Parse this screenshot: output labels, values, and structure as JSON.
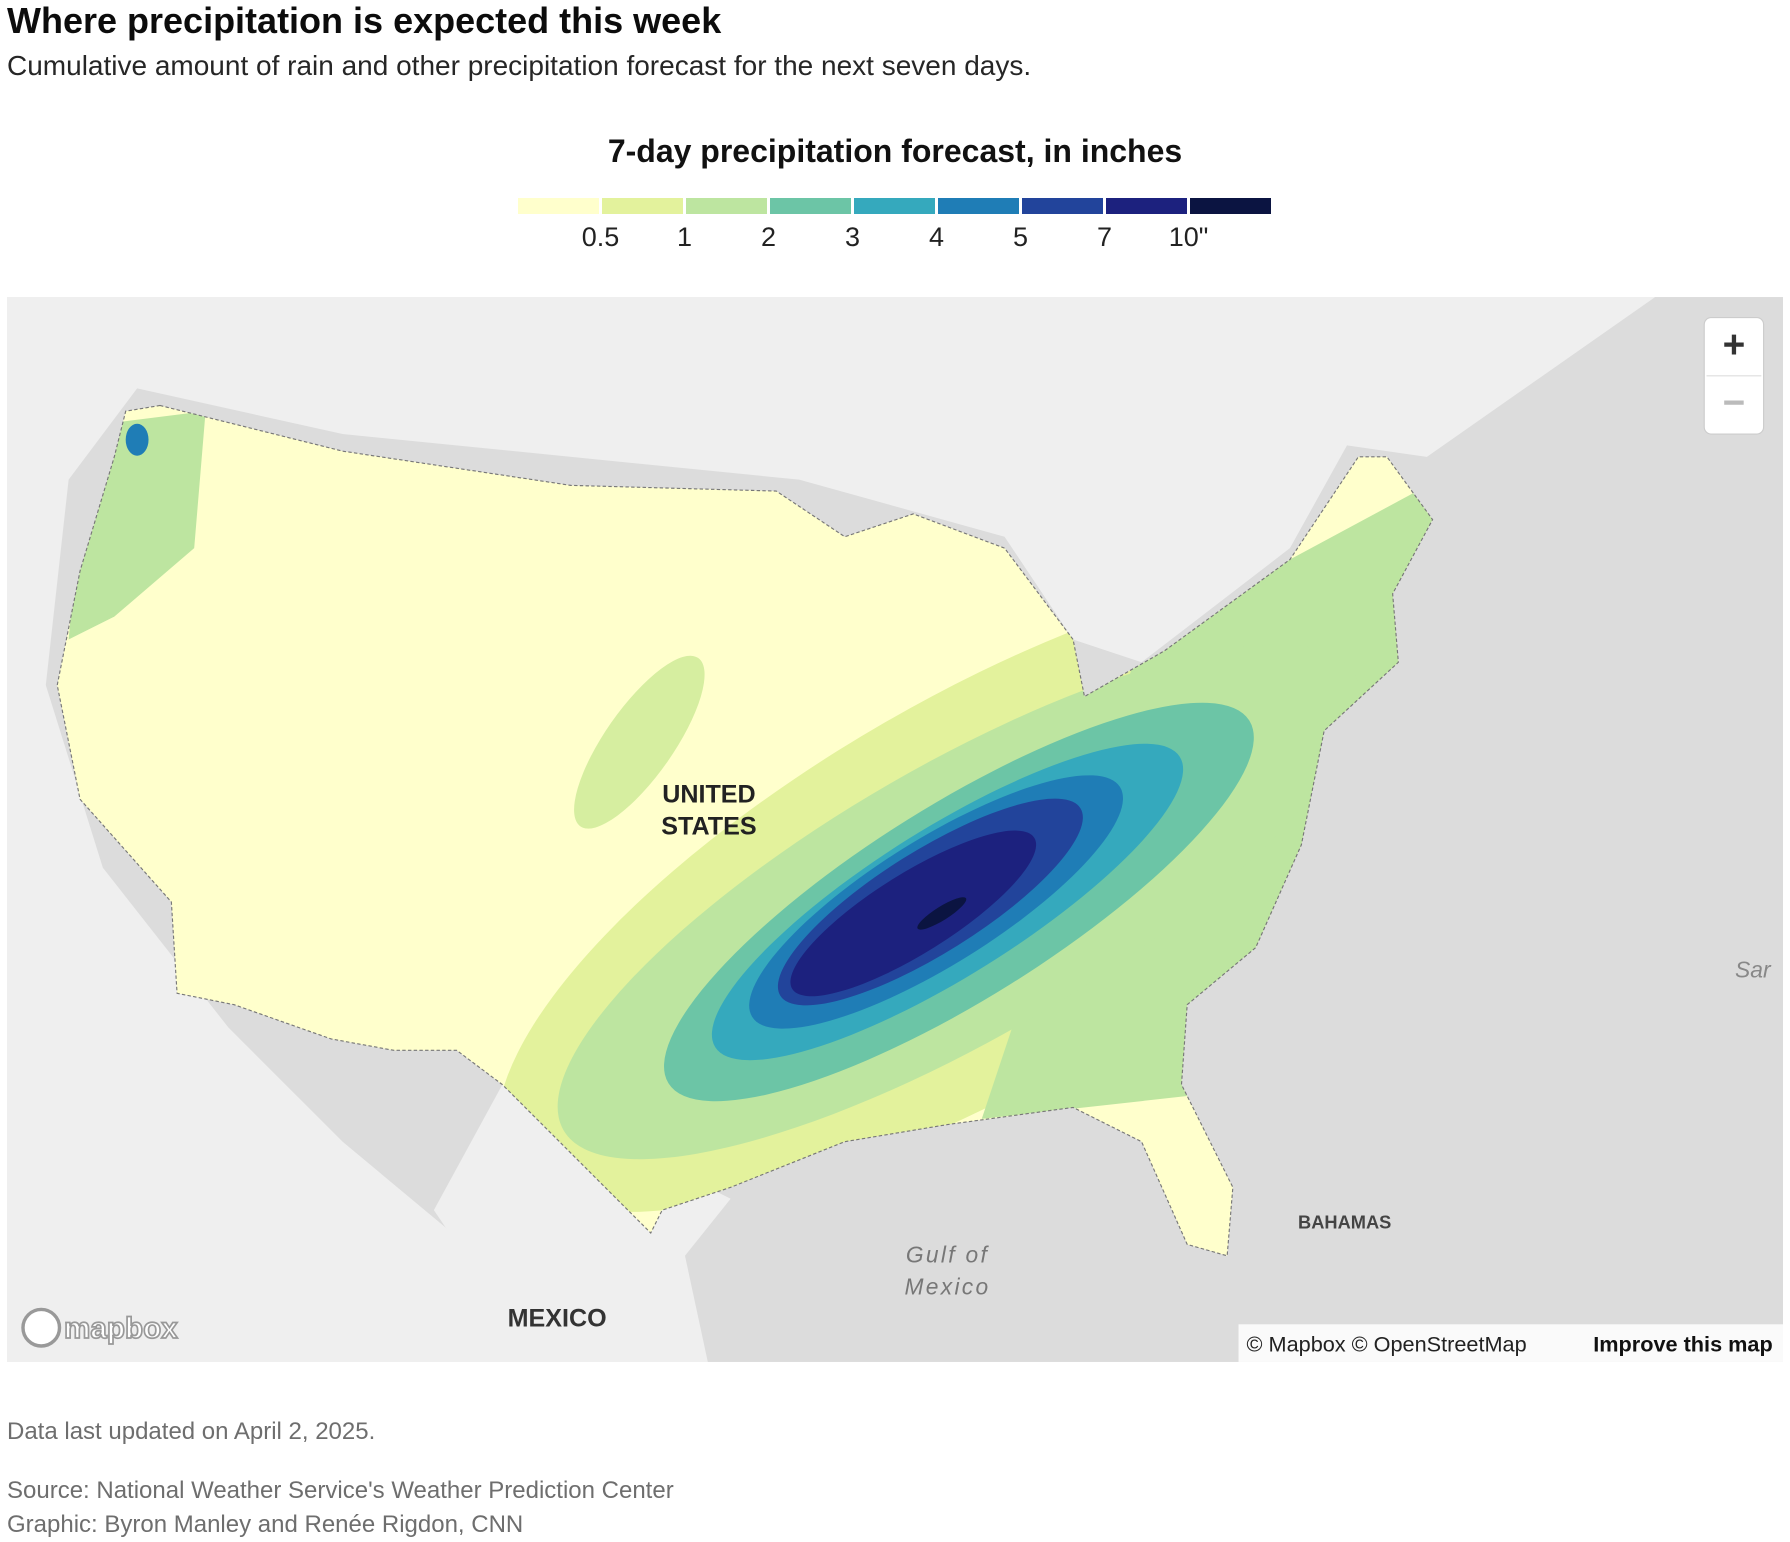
{
  "header": {
    "title": "Where precipitation is expected this week",
    "subtitle": "Cumulative amount of rain and other precipitation forecast for the next seven days."
  },
  "legend": {
    "title": "7-day precipitation forecast, in inches",
    "colors": [
      "#ffffcc",
      "#e3f29c",
      "#bde5a0",
      "#6cc5a6",
      "#35a9bd",
      "#1f7db6",
      "#22449b",
      "#1c217e",
      "#0b1441"
    ],
    "labels": [
      "0.5",
      "1",
      "2",
      "3",
      "4",
      "5",
      "7",
      "10\""
    ]
  },
  "map": {
    "labels": {
      "us": "UNITED\nSTATES",
      "mexico": "MEXICO",
      "gulf": "Gulf of\nMexico",
      "bahamas": "BAHAMAS",
      "edge": "Sar"
    },
    "zoom_in": "+",
    "zoom_out": "−",
    "logo": "mapbox",
    "attribution": "© Mapbox © OpenStreetMap",
    "improve": "Improve this map"
  },
  "footer": {
    "updated": "Data last updated on April 2, 2025.",
    "source": "Source: National Weather Service's Weather Prediction Center",
    "credit": "Graphic: Byron Manley and Renée Rigdon, CNN"
  }
}
